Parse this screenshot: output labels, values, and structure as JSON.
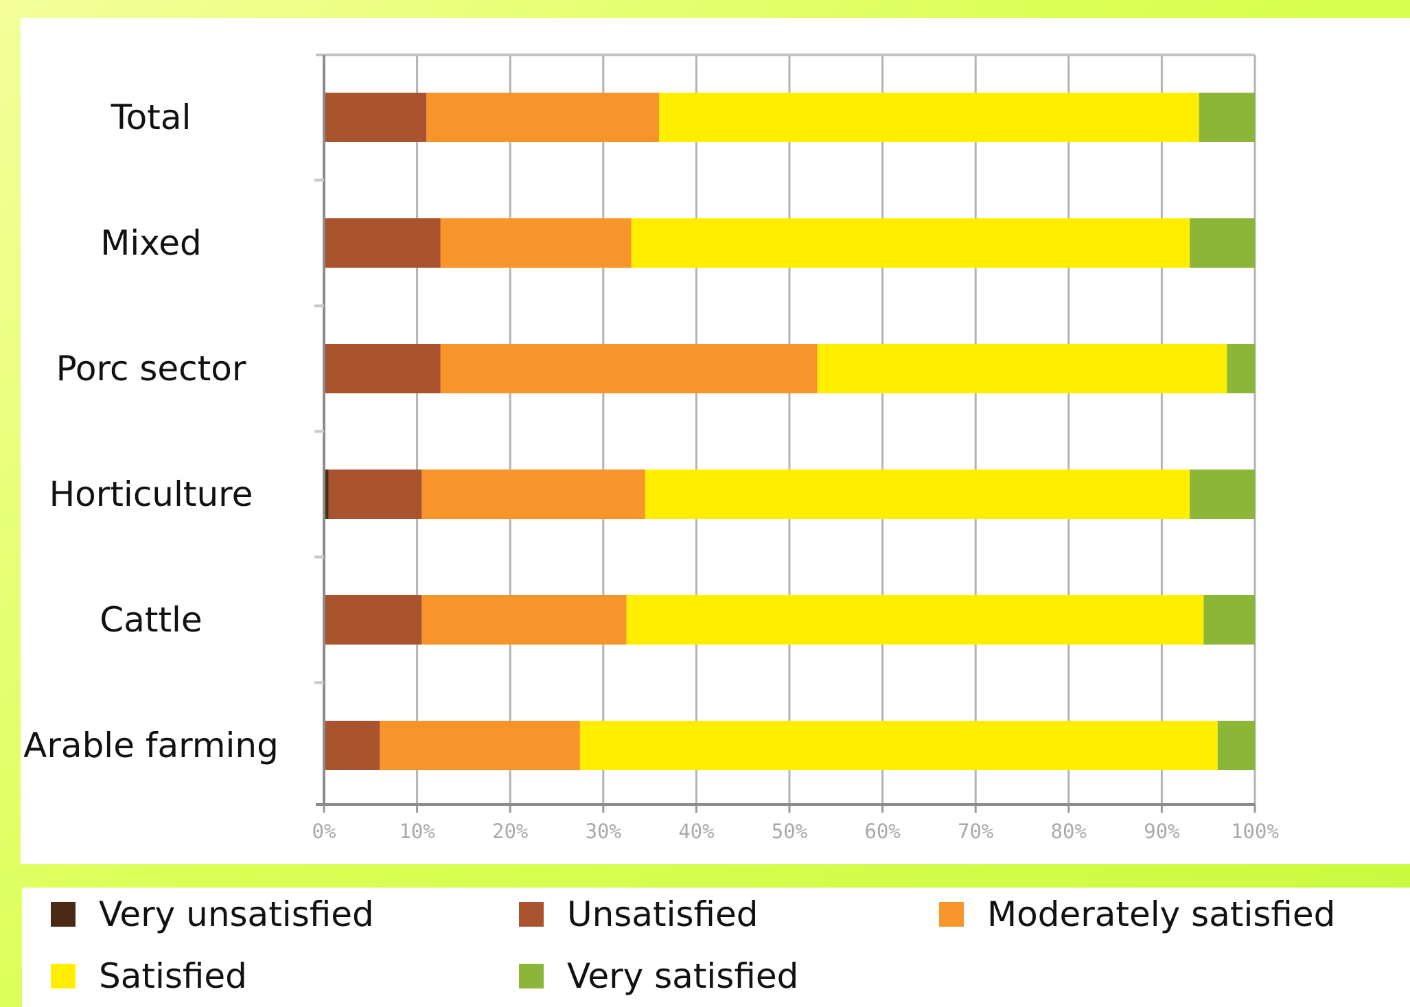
{
  "chart_data": {
    "type": "bar",
    "orientation": "horizontal",
    "stacked": "percent",
    "categories": [
      "Total",
      "Mixed",
      "Porc sector",
      "Horticulture",
      "Cattle",
      "Arable farming"
    ],
    "series": [
      {
        "name": "Very unsatisfied",
        "color": "#4a2a14",
        "values": [
          0,
          0,
          0,
          0.5,
          0,
          0
        ]
      },
      {
        "name": "Unsatisfied",
        "color": "#a9532f",
        "values": [
          11,
          12.5,
          12.5,
          10,
          10.5,
          6
        ]
      },
      {
        "name": "Moderately satisfied",
        "color": "#f7952b",
        "values": [
          25,
          20.5,
          40.5,
          24,
          22,
          21.5
        ]
      },
      {
        "name": "Satisfied",
        "color": "#ffee00",
        "values": [
          58,
          60,
          44,
          58.5,
          62,
          68.5
        ]
      },
      {
        "name": "Very satisfied",
        "color": "#8cb638",
        "values": [
          6,
          7,
          3,
          7,
          5.5,
          4
        ]
      }
    ],
    "x_ticks": [
      "0%",
      "10%",
      "20%",
      "30%",
      "40%",
      "50%",
      "60%",
      "70%",
      "80%",
      "90%",
      "100%"
    ],
    "xlim": [
      0,
      100
    ],
    "grid": true,
    "legend": "bottom"
  }
}
